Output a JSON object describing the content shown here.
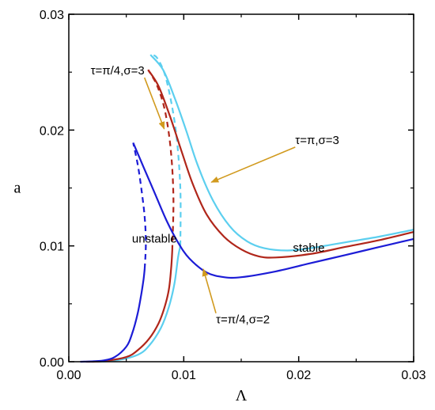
{
  "chart_data": {
    "type": "line",
    "xlabel": "Λ",
    "ylabel": "a",
    "xlim": [
      0,
      0.03
    ],
    "ylim": [
      0,
      0.03
    ],
    "x_ticks": [
      "0.00",
      "0.01",
      "0.02",
      "0.03"
    ],
    "y_ticks": [
      "0.00",
      "0.01",
      "0.02",
      "0.03"
    ],
    "grid": false,
    "series": [
      {
        "color": "#1c1cd6",
        "stable_low": [
          [
            0.001,
            0.0
          ],
          [
            0.002,
            3e-05
          ],
          [
            0.003,
            0.0001
          ],
          [
            0.004,
            0.0004
          ],
          [
            0.005,
            0.0013
          ],
          [
            0.0055,
            0.0024
          ],
          [
            0.006,
            0.0042
          ],
          [
            0.0063,
            0.0058
          ],
          [
            0.0065,
            0.0071
          ],
          [
            0.0066,
            0.008
          ]
        ],
        "unstable": [
          [
            0.0066,
            0.008
          ],
          [
            0.0067,
            0.0102
          ],
          [
            0.0066,
            0.0125
          ],
          [
            0.0063,
            0.015
          ],
          [
            0.006,
            0.017
          ],
          [
            0.0056,
            0.0189
          ]
        ],
        "stable_high": [
          [
            0.0056,
            0.0189
          ],
          [
            0.0065,
            0.0168
          ],
          [
            0.0075,
            0.0145
          ],
          [
            0.0085,
            0.0122
          ],
          [
            0.0095,
            0.0103
          ],
          [
            0.0105,
            0.0089
          ],
          [
            0.012,
            0.0077
          ],
          [
            0.0135,
            0.0073
          ],
          [
            0.015,
            0.0073
          ],
          [
            0.018,
            0.0078
          ],
          [
            0.021,
            0.0085
          ],
          [
            0.024,
            0.0092
          ],
          [
            0.027,
            0.0099
          ],
          [
            0.03,
            0.0106
          ]
        ]
      },
      {
        "color": "#b0261a",
        "stable_low": [
          [
            0.0015,
            0.0
          ],
          [
            0.003,
            5e-05
          ],
          [
            0.005,
            0.0004
          ],
          [
            0.006,
            0.001
          ],
          [
            0.007,
            0.002
          ],
          [
            0.0078,
            0.0033
          ],
          [
            0.0083,
            0.0046
          ],
          [
            0.0087,
            0.0062
          ],
          [
            0.0089,
            0.008
          ],
          [
            0.009,
            0.0096
          ]
        ],
        "unstable": [
          [
            0.009,
            0.0096
          ],
          [
            0.0091,
            0.014
          ],
          [
            0.0089,
            0.018
          ],
          [
            0.0084,
            0.0215
          ],
          [
            0.0077,
            0.0238
          ],
          [
            0.0069,
            0.0252
          ]
        ],
        "stable_high": [
          [
            0.0069,
            0.0252
          ],
          [
            0.0078,
            0.0238
          ],
          [
            0.0088,
            0.0212
          ],
          [
            0.0098,
            0.0182
          ],
          [
            0.0108,
            0.0153
          ],
          [
            0.012,
            0.0127
          ],
          [
            0.0135,
            0.0108
          ],
          [
            0.015,
            0.0097
          ],
          [
            0.0165,
            0.0091
          ],
          [
            0.018,
            0.009
          ],
          [
            0.021,
            0.0093
          ],
          [
            0.024,
            0.0099
          ],
          [
            0.027,
            0.0105
          ],
          [
            0.03,
            0.0112
          ]
        ]
      },
      {
        "color": "#5ccfef",
        "stable_low": [
          [
            0.002,
            0.0
          ],
          [
            0.004,
            0.0001
          ],
          [
            0.006,
            0.0006
          ],
          [
            0.007,
            0.0014
          ],
          [
            0.008,
            0.0029
          ],
          [
            0.0087,
            0.0047
          ],
          [
            0.0092,
            0.0068
          ],
          [
            0.0095,
            0.009
          ],
          [
            0.0097,
            0.01
          ]
        ],
        "unstable": [
          [
            0.0097,
            0.01
          ],
          [
            0.0097,
            0.015
          ],
          [
            0.0093,
            0.02
          ],
          [
            0.0085,
            0.0243
          ],
          [
            0.0077,
            0.0262
          ],
          [
            0.0071,
            0.0265
          ]
        ],
        "stable_high": [
          [
            0.0071,
            0.0265
          ],
          [
            0.0082,
            0.0252
          ],
          [
            0.0092,
            0.0228
          ],
          [
            0.0102,
            0.02
          ],
          [
            0.0112,
            0.017
          ],
          [
            0.0125,
            0.014
          ],
          [
            0.014,
            0.0117
          ],
          [
            0.0155,
            0.0104
          ],
          [
            0.017,
            0.0098
          ],
          [
            0.019,
            0.0096
          ],
          [
            0.021,
            0.0098
          ],
          [
            0.024,
            0.0103
          ],
          [
            0.027,
            0.0108
          ],
          [
            0.03,
            0.0114
          ]
        ]
      }
    ],
    "annotations": [
      {
        "text": "τ=π/4,σ=3",
        "x": 0.0019,
        "y": 0.0248,
        "arrow_to": [
          0.0083,
          0.0201
        ]
      },
      {
        "text": "τ=π,σ=3",
        "x": 0.0197,
        "y": 0.0188,
        "arrow_to": [
          0.0124,
          0.0155
        ]
      },
      {
        "text": "unstable",
        "x": 0.0055,
        "y": 0.0103
      },
      {
        "text": "stable",
        "x": 0.0195,
        "y": 0.0095
      },
      {
        "text": "τ=π/4,σ=2",
        "x": 0.0128,
        "y": 0.0033,
        "arrow_to": [
          0.0117,
          0.008
        ]
      }
    ],
    "arrow_color": "#d19a1e"
  }
}
